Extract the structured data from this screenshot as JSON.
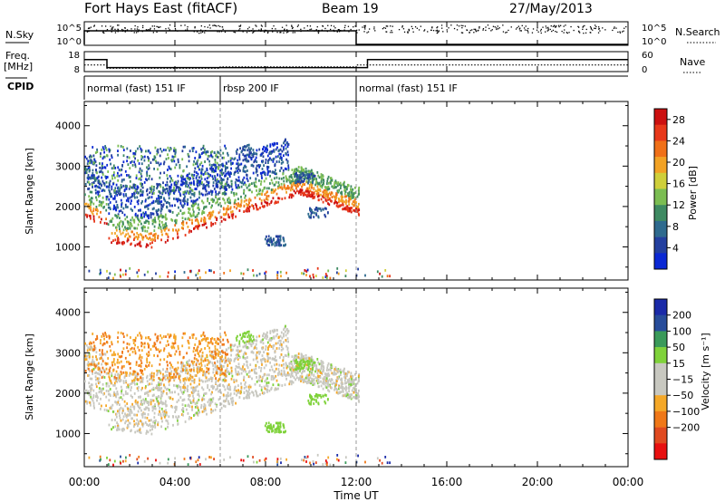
{
  "header": {
    "title": "Fort Hays East (fitACF)",
    "beam": "Beam 19",
    "date": "27/May/2013"
  },
  "colors": {
    "power": [
      "#0a28d4",
      "#233f9f",
      "#2e6a8e",
      "#3e8a62",
      "#7bbd52",
      "#cfcf3a",
      "#f2a224",
      "#f07018",
      "#e8381a",
      "#cc1010"
    ],
    "velocity": [
      "#e81010",
      "#e04a20",
      "#f07818",
      "#f5a828",
      "#c8c8c0",
      "#c8c8c0",
      "#7fd23a",
      "#3a9a5a",
      "#274c9a",
      "#1a2aa8"
    ],
    "ground_scatter": "#c8c8c0"
  },
  "chart_data": [
    {
      "type": "line",
      "panel": "nsky-nsearch",
      "ylabel_left": "N.Sky",
      "ylabel_right": "N.Search",
      "ticks_left": [
        "10^5",
        "10^0"
      ],
      "ticks_right": [
        "10^5",
        "10^0"
      ]
    },
    {
      "type": "line",
      "panel": "freq-nave",
      "ylabel_left": "Freq.",
      "ylabel_left_unit": "[MHz]",
      "ylabel_right": "Nave",
      "ticks_left": [
        18,
        8
      ],
      "ticks_right": [
        60,
        0
      ],
      "freq_steps": [
        {
          "from": "00:00",
          "to": "01:00",
          "value": 14
        },
        {
          "from": "01:00",
          "to": "12:30",
          "value": 10
        },
        {
          "from": "12:30",
          "to": "24:00",
          "value": 14
        }
      ],
      "nave_steps": [
        {
          "from": "00:00",
          "to": "01:00",
          "value": 20
        },
        {
          "from": "01:00",
          "to": "06:00",
          "value": 10
        },
        {
          "from": "06:00",
          "to": "12:00",
          "value": 14
        },
        {
          "from": "12:00",
          "to": "24:00",
          "value": 20
        }
      ]
    },
    {
      "type": "table",
      "panel": "cpid",
      "label": "CPID",
      "segments": [
        {
          "from": "00:00",
          "to": "06:00",
          "label": "normal (fast) 151 IF"
        },
        {
          "from": "06:00",
          "to": "12:00",
          "label": "rbsp 200 IF"
        },
        {
          "from": "12:00",
          "to": "24:00",
          "label": "normal (fast) 151 IF"
        }
      ]
    },
    {
      "type": "heatmap",
      "panel": "power",
      "ylabel": "Slant Range [km]",
      "yticks": [
        1000,
        2000,
        3000,
        4000
      ],
      "ylim": [
        180,
        4600
      ],
      "colorbar_label": "Power [dB]",
      "colorbar_ticks": [
        4,
        8,
        12,
        16,
        20,
        24,
        28
      ],
      "colorbar_range": [
        0,
        30
      ]
    },
    {
      "type": "heatmap",
      "panel": "velocity",
      "ylabel": "Slant Range [km]",
      "yticks": [
        1000,
        2000,
        3000,
        4000
      ],
      "ylim": [
        180,
        4600
      ],
      "colorbar_label": "Velocity [m s⁻¹]",
      "colorbar_ticks": [
        "200",
        "100",
        "50",
        "15",
        "−15",
        "−50",
        "−100",
        "−200"
      ]
    }
  ],
  "time_axis": {
    "xlabel": "Time UT",
    "ticks": [
      "00:00",
      "04:00",
      "08:00",
      "12:00",
      "16:00",
      "20:00",
      "00:00"
    ],
    "vlines": [
      "06:00",
      "12:00"
    ]
  }
}
